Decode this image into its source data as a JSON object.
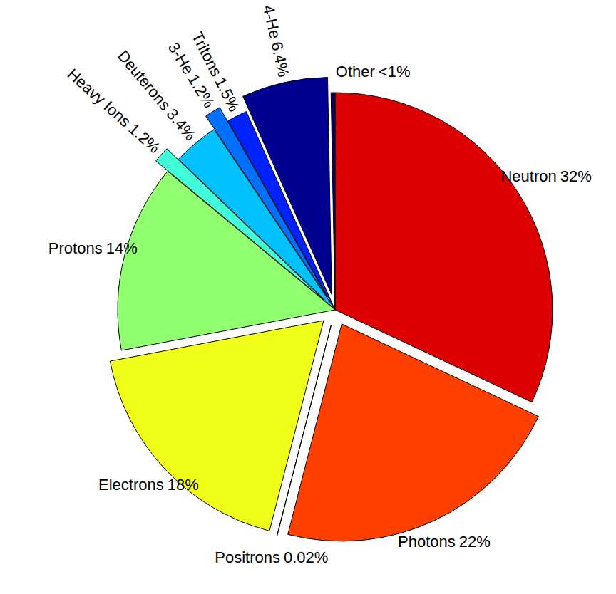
{
  "chart_data": {
    "type": "pie",
    "categories": [
      "Neutron",
      "Photons",
      "Positrons",
      "Electrons",
      "Protons",
      "Heavy Ions",
      "Deuterons",
      "3-He",
      "Tritons",
      "4-He",
      "Other"
    ],
    "values": [
      32,
      22,
      0.02,
      18,
      14,
      1.2,
      3.4,
      1.2,
      1.5,
      6.4,
      0.3
    ],
    "value_labels": [
      "32%",
      "22%",
      "0.02%",
      "18%",
      "14%",
      "1.2%",
      "3.4%",
      "1.2%",
      "1.5%",
      "6.4%",
      "<1%"
    ],
    "colors": [
      "#dd0000",
      "#ff4000",
      "#ffbf00",
      "#f0ff1a",
      "#90ff70",
      "#40ffd8",
      "#00c0ff",
      "#0070ff",
      "#0022ff",
      "#000090",
      "#000060"
    ],
    "data_labels": true
  }
}
